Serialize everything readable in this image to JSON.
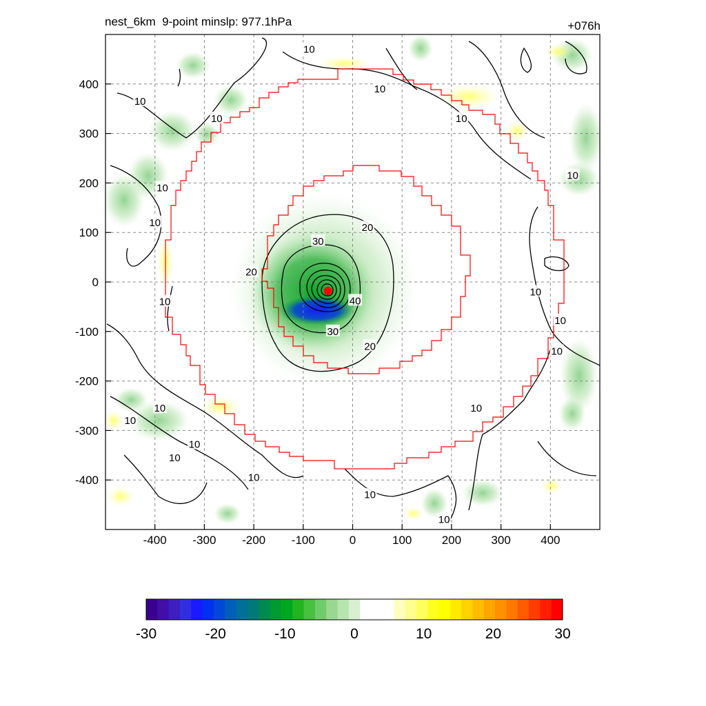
{
  "title_left": "nest_6km  9-point minslp: 977.1hPa",
  "title_right": "+076h",
  "chart_data": {
    "type": "heatmap",
    "grid": true,
    "xlim": [
      -500,
      500
    ],
    "ylim": [
      -500,
      500
    ],
    "x_ticks": [
      -400,
      -300,
      -200,
      -100,
      0,
      100,
      200,
      300,
      400
    ],
    "y_ticks": [
      400,
      300,
      200,
      100,
      0,
      -100,
      -200,
      -300,
      -400
    ],
    "storm_center": {
      "x": -50,
      "y": -18
    },
    "contour_labels": [
      {
        "text": "10",
        "x": -430,
        "y": 365
      },
      {
        "text": "10",
        "x": -275,
        "y": 330
      },
      {
        "text": "10",
        "x": -385,
        "y": 190
      },
      {
        "text": "10",
        "x": -400,
        "y": 120
      },
      {
        "text": "10",
        "x": -380,
        "y": -40
      },
      {
        "text": "10",
        "x": -88,
        "y": 470
      },
      {
        "text": "10",
        "x": 55,
        "y": 390
      },
      {
        "text": "10",
        "x": 220,
        "y": 330
      },
      {
        "text": "10",
        "x": 445,
        "y": 215
      },
      {
        "text": "10",
        "x": 370,
        "y": -20
      },
      {
        "text": "10",
        "x": 420,
        "y": -78
      },
      {
        "text": "10",
        "x": 413,
        "y": -140
      },
      {
        "text": "10",
        "x": 250,
        "y": -255
      },
      {
        "text": "10",
        "x": -450,
        "y": -280
      },
      {
        "text": "10",
        "x": -390,
        "y": -255
      },
      {
        "text": "10",
        "x": -320,
        "y": -328
      },
      {
        "text": "10",
        "x": -360,
        "y": -355
      },
      {
        "text": "10",
        "x": -200,
        "y": -395
      },
      {
        "text": "10",
        "x": 35,
        "y": -430
      },
      {
        "text": "10",
        "x": 185,
        "y": -480
      },
      {
        "text": "20",
        "x": 30,
        "y": 110
      },
      {
        "text": "20",
        "x": -205,
        "y": 20
      },
      {
        "text": "20",
        "x": 35,
        "y": -130
      },
      {
        "text": "30",
        "x": -70,
        "y": 82
      },
      {
        "text": "30",
        "x": -40,
        "y": -100
      },
      {
        "text": "40",
        "x": 5,
        "y": -38
      }
    ],
    "colorbar": {
      "min": -30,
      "max": 30,
      "ticks": [
        -30,
        -20,
        -10,
        0,
        10,
        20,
        30
      ],
      "colors": [
        "#3a0090",
        "#3f0fa8",
        "#3f1fc0",
        "#2f2fe0",
        "#1a1aff",
        "#0030f0",
        "#0048d8",
        "#005fb8",
        "#00709a",
        "#007a78",
        "#008a50",
        "#009a30",
        "#00a820",
        "#22b520",
        "#48c040",
        "#70cc6a",
        "#98d890",
        "#b8e4b0",
        "#d6f0d0",
        "#ffffff",
        "#ffffff",
        "#ffffff",
        "#ffffc0",
        "#ffff90",
        "#ffff60",
        "#ffff20",
        "#ffff00",
        "#ffea00",
        "#ffd200",
        "#ffbc00",
        "#ffa500",
        "#ff9000",
        "#ff7800",
        "#ff5a00",
        "#ff3c00",
        "#ff1e00",
        "#ff0000"
      ]
    }
  }
}
